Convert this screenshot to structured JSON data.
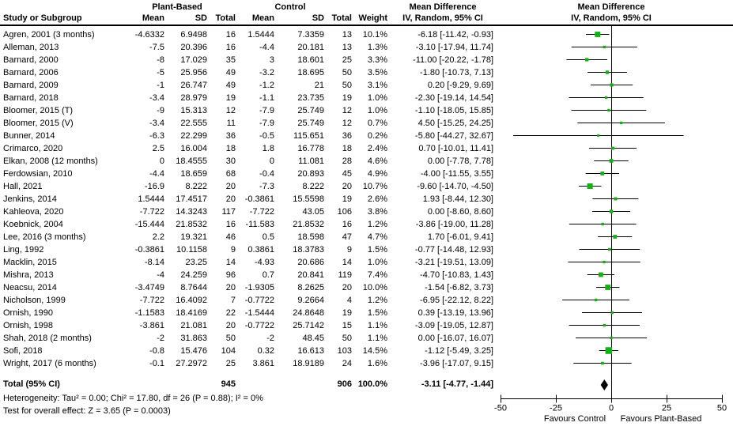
{
  "header": {
    "group_plant_based": "Plant-Based",
    "group_control": "Control",
    "col_study": "Study or Subgroup",
    "col_mean": "Mean",
    "col_sd": "SD",
    "col_total": "Total",
    "col_weight": "Weight",
    "md_title": "Mean Difference",
    "md_subtitle": "IV, Random, 95% CI"
  },
  "colors": {
    "marker_green": "#12b212",
    "diamond_black": "#000000",
    "line_black": "#000000"
  },
  "chart_data": {
    "type": "forest",
    "effect_measure": "Mean Difference, IV, Random, 95% CI",
    "axis": {
      "xlim": [
        -50,
        50
      ],
      "ticks": [
        -50,
        -25,
        0,
        25,
        50
      ],
      "favours_left": "Favours Control",
      "favours_right": "Favours Plant-Based"
    },
    "studies": [
      {
        "name": "Agren, 2001 (3 months)",
        "pb_mean": "-4.6332",
        "pb_sd": "6.9498",
        "pb_total": "16",
        "c_mean": "1.5444",
        "c_sd": "7.3359",
        "c_total": "13",
        "weight": "10.1%",
        "weight_pct": 10.1,
        "md_label": "-6.18 [-11.42, -0.93]",
        "md": -6.18,
        "lo": -11.42,
        "hi": -0.93
      },
      {
        "name": "Alleman, 2013",
        "pb_mean": "-7.5",
        "pb_sd": "20.396",
        "pb_total": "16",
        "c_mean": "-4.4",
        "c_sd": "20.181",
        "c_total": "13",
        "weight": "1.3%",
        "weight_pct": 1.3,
        "md_label": "-3.10 [-17.94, 11.74]",
        "md": -3.1,
        "lo": -17.94,
        "hi": 11.74
      },
      {
        "name": "Barnard, 2000",
        "pb_mean": "-8",
        "pb_sd": "17.029",
        "pb_total": "35",
        "c_mean": "3",
        "c_sd": "18.601",
        "c_total": "25",
        "weight": "3.3%",
        "weight_pct": 3.3,
        "md_label": "-11.00 [-20.22, -1.78]",
        "md": -11.0,
        "lo": -20.22,
        "hi": -1.78
      },
      {
        "name": "Barnard, 2006",
        "pb_mean": "-5",
        "pb_sd": "25.956",
        "pb_total": "49",
        "c_mean": "-3.2",
        "c_sd": "18.695",
        "c_total": "50",
        "weight": "3.5%",
        "weight_pct": 3.5,
        "md_label": "-1.80 [-10.73, 7.13]",
        "md": -1.8,
        "lo": -10.73,
        "hi": 7.13
      },
      {
        "name": "Barnard, 2009",
        "pb_mean": "-1",
        "pb_sd": "26.747",
        "pb_total": "49",
        "c_mean": "-1.2",
        "c_sd": "21",
        "c_total": "50",
        "weight": "3.1%",
        "weight_pct": 3.1,
        "md_label": "0.20 [-9.29, 9.69]",
        "md": 0.2,
        "lo": -9.29,
        "hi": 9.69
      },
      {
        "name": "Barnard, 2018",
        "pb_mean": "-3.4",
        "pb_sd": "28.979",
        "pb_total": "19",
        "c_mean": "-1.1",
        "c_sd": "23.735",
        "c_total": "19",
        "weight": "1.0%",
        "weight_pct": 1.0,
        "md_label": "-2.30 [-19.14, 14.54]",
        "md": -2.3,
        "lo": -19.14,
        "hi": 14.54
      },
      {
        "name": "Bloomer, 2015 (T)",
        "pb_mean": "-9",
        "pb_sd": "15.313",
        "pb_total": "12",
        "c_mean": "-7.9",
        "c_sd": "25.749",
        "c_total": "12",
        "weight": "1.0%",
        "weight_pct": 1.0,
        "md_label": "-1.10 [-18.05, 15.85]",
        "md": -1.1,
        "lo": -18.05,
        "hi": 15.85
      },
      {
        "name": "Bloomer, 2015 (V)",
        "pb_mean": "-3.4",
        "pb_sd": "22.555",
        "pb_total": "11",
        "c_mean": "-7.9",
        "c_sd": "25.749",
        "c_total": "12",
        "weight": "0.7%",
        "weight_pct": 0.7,
        "md_label": "4.50 [-15.25, 24.25]",
        "md": 4.5,
        "lo": -15.25,
        "hi": 24.25
      },
      {
        "name": "Bunner, 2014",
        "pb_mean": "-6.3",
        "pb_sd": "22.299",
        "pb_total": "36",
        "c_mean": "-0.5",
        "c_sd": "115.651",
        "c_total": "36",
        "weight": "0.2%",
        "weight_pct": 0.2,
        "md_label": "-5.80 [-44.27, 32.67]",
        "md": -5.8,
        "lo": -44.27,
        "hi": 32.67
      },
      {
        "name": "Crimarco, 2020",
        "pb_mean": "2.5",
        "pb_sd": "16.004",
        "pb_total": "18",
        "c_mean": "1.8",
        "c_sd": "16.778",
        "c_total": "18",
        "weight": "2.4%",
        "weight_pct": 2.4,
        "md_label": "0.70 [-10.01, 11.41]",
        "md": 0.7,
        "lo": -10.01,
        "hi": 11.41
      },
      {
        "name": "Elkan, 2008 (12 months)",
        "pb_mean": "0",
        "pb_sd": "18.4555",
        "pb_total": "30",
        "c_mean": "0",
        "c_sd": "11.081",
        "c_total": "28",
        "weight": "4.6%",
        "weight_pct": 4.6,
        "md_label": "0.00 [-7.78, 7.78]",
        "md": 0.0,
        "lo": -7.78,
        "hi": 7.78
      },
      {
        "name": "Ferdowsian, 2010",
        "pb_mean": "-4.4",
        "pb_sd": "18.659",
        "pb_total": "68",
        "c_mean": "-0.4",
        "c_sd": "20.893",
        "c_total": "45",
        "weight": "4.9%",
        "weight_pct": 4.9,
        "md_label": "-4.00 [-11.55, 3.55]",
        "md": -4.0,
        "lo": -11.55,
        "hi": 3.55
      },
      {
        "name": "Hall, 2021",
        "pb_mean": "-16.9",
        "pb_sd": "8.222",
        "pb_total": "20",
        "c_mean": "-7.3",
        "c_sd": "8.222",
        "c_total": "20",
        "weight": "10.7%",
        "weight_pct": 10.7,
        "md_label": "-9.60 [-14.70, -4.50]",
        "md": -9.6,
        "lo": -14.7,
        "hi": -4.5
      },
      {
        "name": "Jenkins, 2014",
        "pb_mean": "1.5444",
        "pb_sd": "17.4517",
        "pb_total": "20",
        "c_mean": "-0.3861",
        "c_sd": "15.5598",
        "c_total": "19",
        "weight": "2.6%",
        "weight_pct": 2.6,
        "md_label": "1.93 [-8.44, 12.30]",
        "md": 1.93,
        "lo": -8.44,
        "hi": 12.3
      },
      {
        "name": "Kahleova, 2020",
        "pb_mean": "-7.722",
        "pb_sd": "14.3243",
        "pb_total": "117",
        "c_mean": "-7.722",
        "c_sd": "43.05",
        "c_total": "106",
        "weight": "3.8%",
        "weight_pct": 3.8,
        "md_label": "0.00 [-8.60, 8.60]",
        "md": 0.0,
        "lo": -8.6,
        "hi": 8.6
      },
      {
        "name": "Koebnick, 2004",
        "pb_mean": "-15.444",
        "pb_sd": "21.8532",
        "pb_total": "16",
        "c_mean": "-11.583",
        "c_sd": "21.8532",
        "c_total": "16",
        "weight": "1.2%",
        "weight_pct": 1.2,
        "md_label": "-3.86 [-19.00, 11.28]",
        "md": -3.86,
        "lo": -19.0,
        "hi": 11.28
      },
      {
        "name": "Lee, 2016 (3 months)",
        "pb_mean": "2.2",
        "pb_sd": "19.321",
        "pb_total": "46",
        "c_mean": "0.5",
        "c_sd": "18.598",
        "c_total": "47",
        "weight": "4.7%",
        "weight_pct": 4.7,
        "md_label": "1.70 [-6.01, 9.41]",
        "md": 1.7,
        "lo": -6.01,
        "hi": 9.41
      },
      {
        "name": "Ling, 1992",
        "pb_mean": "-0.3861",
        "pb_sd": "10.1158",
        "pb_total": "9",
        "c_mean": "0.3861",
        "c_sd": "18.3783",
        "c_total": "9",
        "weight": "1.5%",
        "weight_pct": 1.5,
        "md_label": "-0.77 [-14.48, 12.93]",
        "md": -0.77,
        "lo": -14.48,
        "hi": 12.93
      },
      {
        "name": "Macklin, 2015",
        "pb_mean": "-8.14",
        "pb_sd": "23.25",
        "pb_total": "14",
        "c_mean": "-4.93",
        "c_sd": "20.686",
        "c_total": "14",
        "weight": "1.0%",
        "weight_pct": 1.0,
        "md_label": "-3.21 [-19.51, 13.09]",
        "md": -3.21,
        "lo": -19.51,
        "hi": 13.09
      },
      {
        "name": "Mishra, 2013",
        "pb_mean": "-4",
        "pb_sd": "24.259",
        "pb_total": "96",
        "c_mean": "0.7",
        "c_sd": "20.841",
        "c_total": "119",
        "weight": "7.4%",
        "weight_pct": 7.4,
        "md_label": "-4.70 [-10.83, 1.43]",
        "md": -4.7,
        "lo": -10.83,
        "hi": 1.43
      },
      {
        "name": "Neacsu, 2014",
        "pb_mean": "-3.4749",
        "pb_sd": "8.7644",
        "pb_total": "20",
        "c_mean": "-1.9305",
        "c_sd": "8.2625",
        "c_total": "20",
        "weight": "10.0%",
        "weight_pct": 10.0,
        "md_label": "-1.54 [-6.82, 3.73]",
        "md": -1.54,
        "lo": -6.82,
        "hi": 3.73
      },
      {
        "name": "Nicholson, 1999",
        "pb_mean": "-7.722",
        "pb_sd": "16.4092",
        "pb_total": "7",
        "c_mean": "-0.7722",
        "c_sd": "9.2664",
        "c_total": "4",
        "weight": "1.2%",
        "weight_pct": 1.2,
        "md_label": "-6.95 [-22.12, 8.22]",
        "md": -6.95,
        "lo": -22.12,
        "hi": 8.22
      },
      {
        "name": "Ornish, 1990",
        "pb_mean": "-1.1583",
        "pb_sd": "18.4169",
        "pb_total": "22",
        "c_mean": "-1.5444",
        "c_sd": "24.8648",
        "c_total": "19",
        "weight": "1.5%",
        "weight_pct": 1.5,
        "md_label": "0.39 [-13.19, 13.96]",
        "md": 0.39,
        "lo": -13.19,
        "hi": 13.96
      },
      {
        "name": "Ornish, 1998",
        "pb_mean": "-3.861",
        "pb_sd": "21.081",
        "pb_total": "20",
        "c_mean": "-0.7722",
        "c_sd": "25.7142",
        "c_total": "15",
        "weight": "1.1%",
        "weight_pct": 1.1,
        "md_label": "-3.09 [-19.05, 12.87]",
        "md": -3.09,
        "lo": -19.05,
        "hi": 12.87
      },
      {
        "name": "Shah, 2018 (2 months)",
        "pb_mean": "-2",
        "pb_sd": "31.863",
        "pb_total": "50",
        "c_mean": "-2",
        "c_sd": "48.45",
        "c_total": "50",
        "weight": "1.1%",
        "weight_pct": 1.1,
        "md_label": "0.00 [-16.07, 16.07]",
        "md": 0.0,
        "lo": -16.07,
        "hi": 16.07
      },
      {
        "name": "Sofi, 2018",
        "pb_mean": "-0.8",
        "pb_sd": "15.476",
        "pb_total": "104",
        "c_mean": "0.32",
        "c_sd": "16.613",
        "c_total": "103",
        "weight": "14.5%",
        "weight_pct": 14.5,
        "md_label": "-1.12 [-5.49, 3.25]",
        "md": -1.12,
        "lo": -5.49,
        "hi": 3.25
      },
      {
        "name": "Wright, 2017 (6 months)",
        "pb_mean": "-0.1",
        "pb_sd": "27.2972",
        "pb_total": "25",
        "c_mean": "3.861",
        "c_sd": "18.9189",
        "c_total": "24",
        "weight": "1.6%",
        "weight_pct": 1.6,
        "md_label": "-3.96 [-17.07, 9.15]",
        "md": -3.96,
        "lo": -17.07,
        "hi": 9.15
      }
    ],
    "total": {
      "label": "Total (95% CI)",
      "pb_total": "945",
      "c_total": "906",
      "weight": "100.0%",
      "md_label": "-3.11 [-4.77, -1.44]",
      "md": -3.11,
      "lo": -4.77,
      "hi": -1.44
    },
    "heterogeneity": "Heterogeneity: Tau² = 0.00; Chi² = 17.80, df = 26 (P = 0.88); I² = 0%",
    "overall_effect": "Test for overall effect: Z = 3.65 (P = 0.0003)"
  }
}
